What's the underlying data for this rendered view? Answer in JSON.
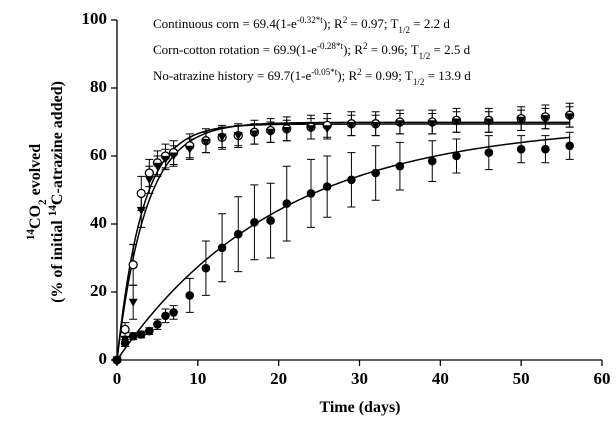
{
  "chart_data": {
    "type": "scatter",
    "x_label": "Time (days)",
    "y_label": [
      [
        {
          "text": "14",
          "pos": "sup"
        },
        {
          "text": "CO"
        },
        {
          "text": "2",
          "pos": "sub"
        },
        {
          "text": " evolved"
        }
      ],
      [
        {
          "text": "(% of initial "
        },
        {
          "text": "14",
          "pos": "sup"
        },
        {
          "text": "C-atrazine added)"
        }
      ]
    ],
    "annotations": [
      [
        {
          "text": "Continuous corn = 69.4(1-e"
        },
        {
          "text": "-0.32*t",
          "pos": "sup"
        },
        {
          "text": "); R"
        },
        {
          "text": "2",
          "pos": "sup"
        },
        {
          "text": " = 0.97; T"
        },
        {
          "text": "1/2",
          "pos": "sub"
        },
        {
          "text": " = 2.2 d"
        }
      ],
      [
        {
          "text": "Corn-cotton rotation = 69.9(1-e"
        },
        {
          "text": "-0.28*t",
          "pos": "sup"
        },
        {
          "text": "); R"
        },
        {
          "text": "2",
          "pos": "sup"
        },
        {
          "text": " = 0.96; T"
        },
        {
          "text": "1/2",
          "pos": "sub"
        },
        {
          "text": " = 2.5 d"
        }
      ],
      [
        {
          "text": "No-atrazine history = 69.7(1-e"
        },
        {
          "text": "-0.05*t",
          "pos": "sup"
        },
        {
          "text": "); R"
        },
        {
          "text": "2",
          "pos": "sup"
        },
        {
          "text": " = 0.99; T"
        },
        {
          "text": "1/2",
          "pos": "sub"
        },
        {
          "text": " = 13.9 d"
        }
      ]
    ],
    "x": [
      0,
      1,
      2,
      3,
      4,
      5,
      6,
      7,
      9,
      11,
      13,
      15,
      17,
      19,
      21,
      24,
      26,
      29,
      32,
      35,
      39,
      42,
      46,
      50,
      53,
      56
    ],
    "series": [
      {
        "marker": "open-circle",
        "color": "#000000",
        "fit": {
          "a": 69.4,
          "k": 0.32
        },
        "values": [
          0,
          9,
          28,
          49,
          55,
          58,
          60,
          61,
          63,
          64.5,
          65.5,
          66,
          67,
          67.5,
          68,
          68.5,
          69,
          69.5,
          69.5,
          70,
          70,
          70.5,
          70.5,
          71,
          71.5,
          72
        ],
        "errors": [
          0,
          2,
          6,
          5,
          4,
          3.5,
          3.5,
          3.5,
          3.5,
          3.5,
          3.5,
          3.5,
          3.5,
          3.5,
          3.5,
          3.5,
          3.5,
          3.5,
          3.5,
          3.5,
          3.5,
          3.5,
          3.5,
          3.5,
          3.5,
          3.5
        ]
      },
      {
        "marker": "triangle-down",
        "color": "#000000",
        "fit": {
          "a": 69.9,
          "k": 0.28
        },
        "values": [
          0,
          6,
          17,
          44,
          53,
          57,
          59,
          60,
          62,
          64,
          65.5,
          66,
          66.5,
          67,
          67.5,
          68,
          68,
          69,
          69,
          69.5,
          69.5,
          70,
          70,
          70.5,
          71,
          71.5
        ],
        "errors": [
          0,
          2,
          5,
          5,
          4,
          3,
          3,
          3,
          3,
          3,
          3,
          3,
          3,
          3,
          3,
          3,
          3,
          3,
          3,
          3,
          3,
          3,
          3,
          3,
          3,
          3
        ]
      },
      {
        "marker": "filled-circle",
        "color": "#000000",
        "fit": {
          "a": 69.7,
          "k": 0.05
        },
        "values": [
          0,
          5,
          7,
          7.5,
          8.5,
          10.5,
          13,
          14,
          19,
          27,
          33,
          37,
          40.5,
          41,
          46,
          49,
          51,
          53,
          55,
          57,
          58.5,
          60,
          61,
          62,
          62,
          63
        ],
        "errors": [
          0,
          1,
          1,
          1,
          1,
          1.5,
          2,
          2,
          5,
          8,
          10,
          11,
          11,
          11,
          11,
          10,
          9,
          8,
          8,
          7,
          6,
          5,
          5,
          4,
          4,
          4
        ]
      }
    ],
    "xlim": [
      0,
      60
    ],
    "xticks": [
      0,
      10,
      20,
      30,
      40,
      50,
      60
    ],
    "ylim": [
      0,
      100
    ],
    "yticks": [
      0,
      20,
      40,
      60,
      80,
      100
    ],
    "grid": false
  }
}
